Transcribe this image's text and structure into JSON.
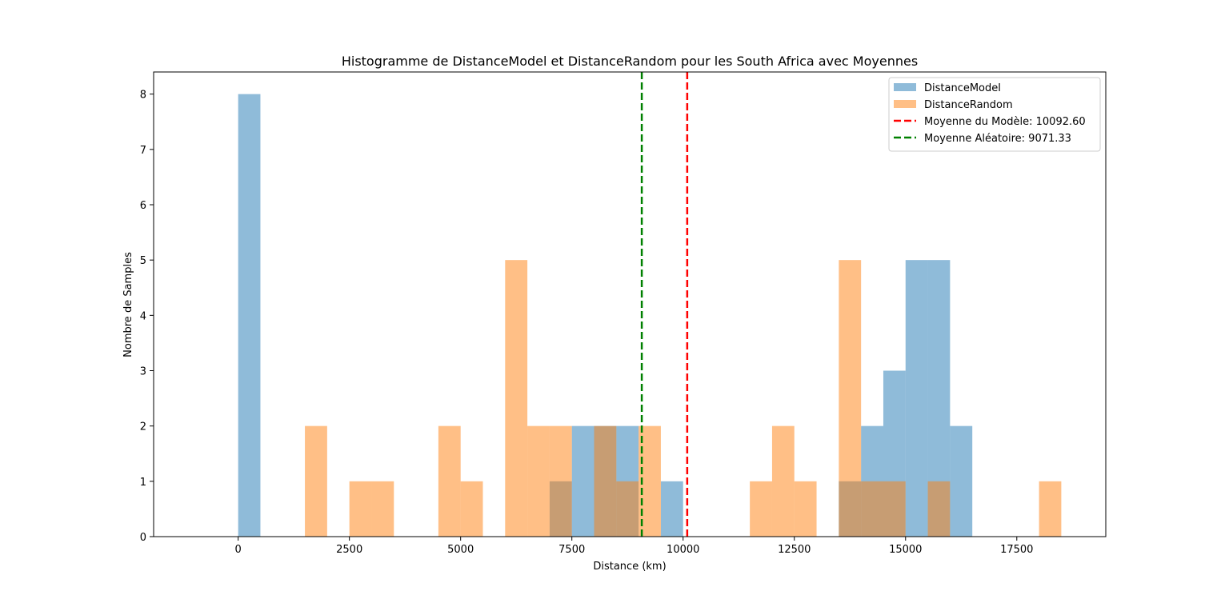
{
  "chart_data": {
    "type": "bar",
    "title": "Histogramme de DistanceModel et DistanceRandom pour les South Africa avec Moyennes",
    "xlabel": "Distance (km)",
    "ylabel": "Nombre de Samples",
    "xlim": [
      -1900,
      19500
    ],
    "ylim": [
      0,
      8.4
    ],
    "xticks": [
      0,
      2500,
      5000,
      7500,
      10000,
      12500,
      15000,
      17500
    ],
    "yticks": [
      0,
      1,
      2,
      3,
      4,
      5,
      6,
      7,
      8
    ],
    "bin_width": 500,
    "series": [
      {
        "name": "DistanceModel",
        "color": "#1f77b4",
        "opacity": 0.5,
        "bins": [
          {
            "start": 0,
            "count": 8
          },
          {
            "start": 7000,
            "count": 1
          },
          {
            "start": 7500,
            "count": 2
          },
          {
            "start": 8000,
            "count": 2
          },
          {
            "start": 8500,
            "count": 2
          },
          {
            "start": 9500,
            "count": 1
          },
          {
            "start": 13500,
            "count": 1
          },
          {
            "start": 14000,
            "count": 2
          },
          {
            "start": 14500,
            "count": 3
          },
          {
            "start": 15000,
            "count": 5
          },
          {
            "start": 15500,
            "count": 5
          },
          {
            "start": 16000,
            "count": 2
          }
        ]
      },
      {
        "name": "DistanceRandom",
        "color": "#ff7f0e",
        "opacity": 0.5,
        "bins": [
          {
            "start": 1500,
            "count": 2
          },
          {
            "start": 2500,
            "count": 1
          },
          {
            "start": 3000,
            "count": 1
          },
          {
            "start": 4500,
            "count": 2
          },
          {
            "start": 5000,
            "count": 1
          },
          {
            "start": 6000,
            "count": 5
          },
          {
            "start": 6500,
            "count": 2
          },
          {
            "start": 7000,
            "count": 2
          },
          {
            "start": 8000,
            "count": 2
          },
          {
            "start": 8500,
            "count": 1
          },
          {
            "start": 9000,
            "count": 2
          },
          {
            "start": 11500,
            "count": 1
          },
          {
            "start": 12000,
            "count": 2
          },
          {
            "start": 12500,
            "count": 1
          },
          {
            "start": 13500,
            "count": 5
          },
          {
            "start": 14000,
            "count": 1
          },
          {
            "start": 14500,
            "count": 1
          },
          {
            "start": 15500,
            "count": 1
          },
          {
            "start": 18000,
            "count": 1
          }
        ]
      }
    ],
    "mean_lines": [
      {
        "name": "Moyenne du Modèle: 10092.60",
        "value": 10092.6,
        "color": "#ff0000"
      },
      {
        "name": "Moyenne Aléatoire: 9071.33",
        "value": 9071.33,
        "color": "#008000"
      }
    ],
    "legend": {
      "position": "top-right",
      "entries": [
        "DistanceModel",
        "DistanceRandom",
        "Moyenne du Modèle: 10092.60",
        "Moyenne Aléatoire: 9071.33"
      ]
    },
    "grid": false
  }
}
